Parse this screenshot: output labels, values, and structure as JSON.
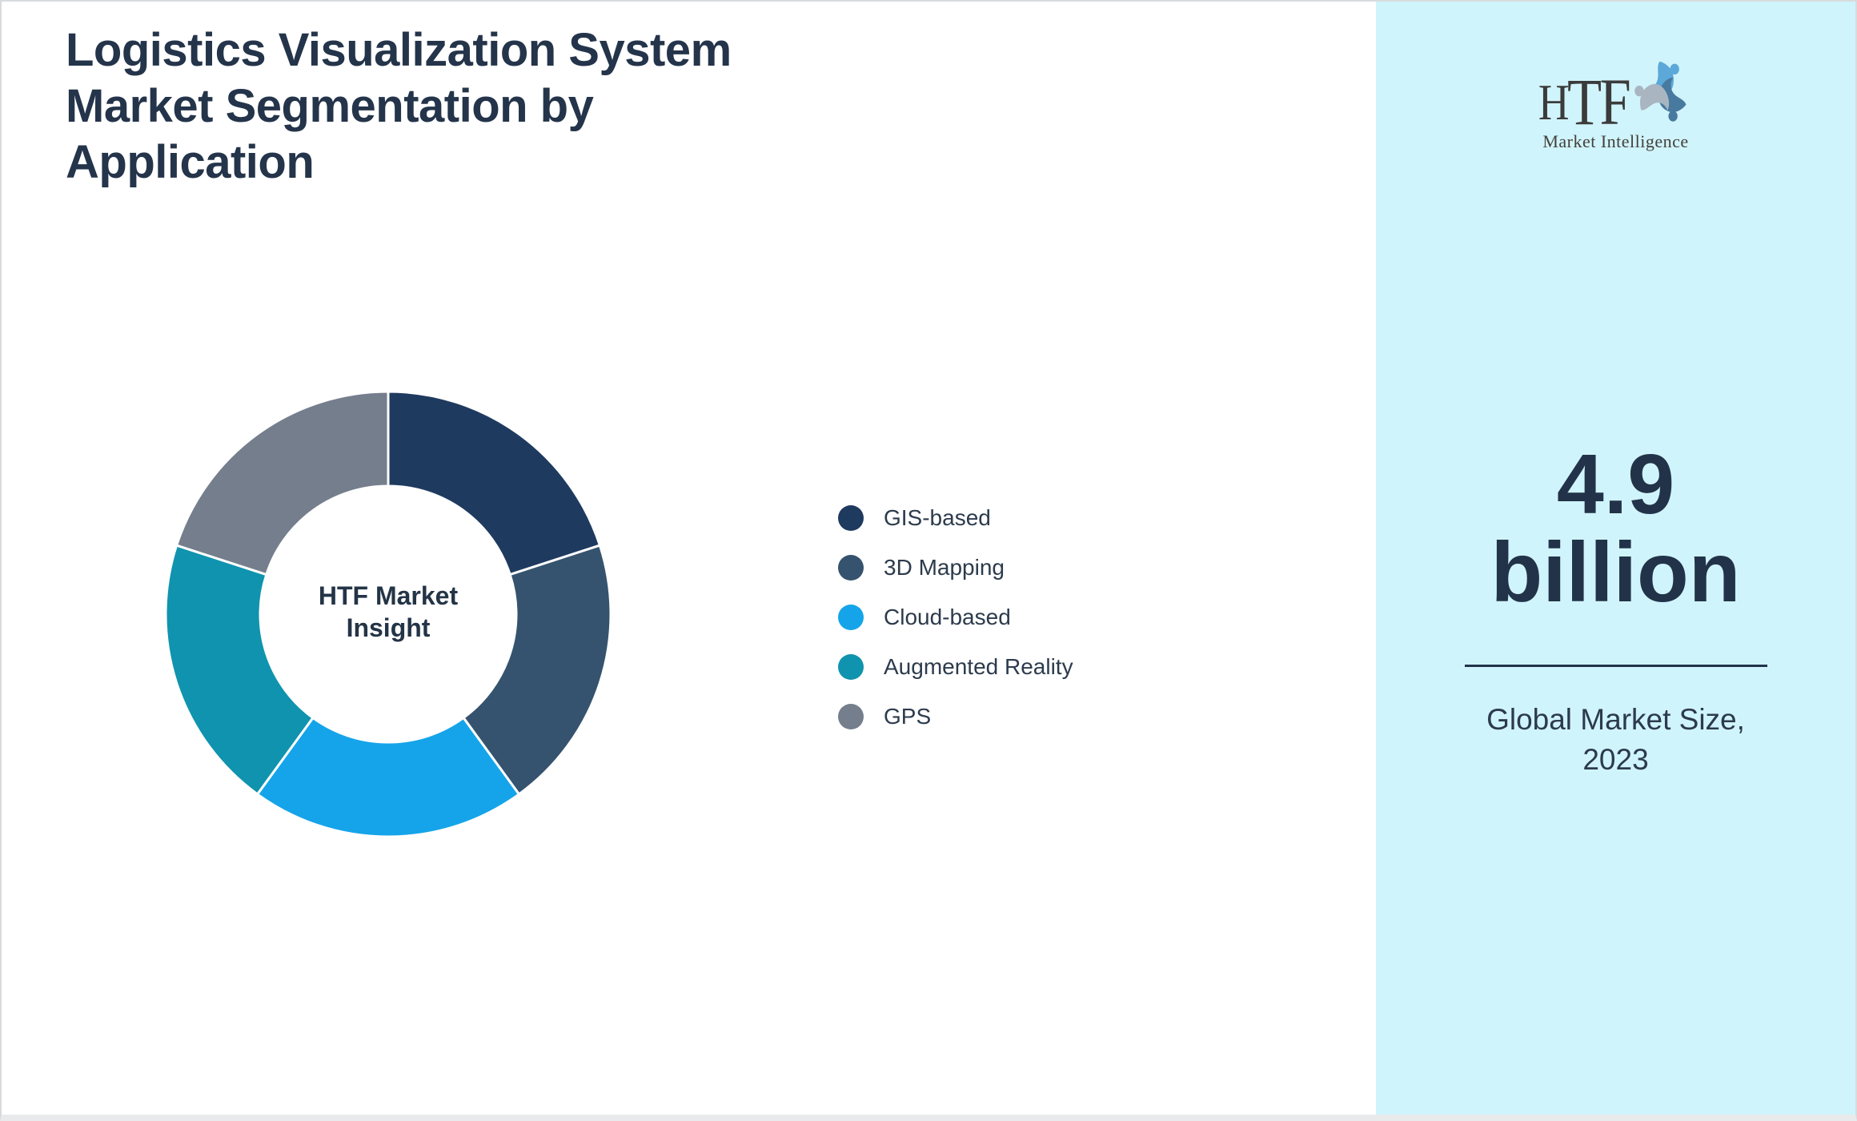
{
  "title": "Logistics Visualization System Market Segmentation by Application",
  "chart_data": {
    "type": "pie",
    "variant": "donut",
    "categories": [
      "GIS-based",
      "3D Mapping",
      "Cloud-based",
      "Augmented Reality",
      "GPS"
    ],
    "values": [
      20,
      20,
      20,
      20,
      20
    ],
    "colors": [
      "#1f3a5f",
      "#35536e",
      "#15a4e9",
      "#1093ae",
      "#757e8c"
    ],
    "center_label": [
      "HTF Market",
      "Insight"
    ],
    "legend_position": "right",
    "start_angle_deg": 0,
    "outer_radius_px": 278,
    "inner_radius_px": 160,
    "segment_gap_color": "#ffffff"
  },
  "sidebar": {
    "background": "#d0f4fb",
    "logo": {
      "brand_part1": "H",
      "brand_part2": "TF",
      "subtitle": "Market Intelligence",
      "swirl_colors": [
        "#5ba8d9",
        "#48799f",
        "#a9b5c1"
      ]
    },
    "market_size": {
      "value_line1": "4.9",
      "value_line2": "billion",
      "caption_line1": "Global Market Size,",
      "caption_line2": "2023"
    }
  },
  "palette": {
    "title_text": "#24344a",
    "legend_text": "#2c3b4c",
    "metric_text": "#223349",
    "frame_border": "#d8dbde",
    "bottom_strip": "#e8eaec"
  }
}
